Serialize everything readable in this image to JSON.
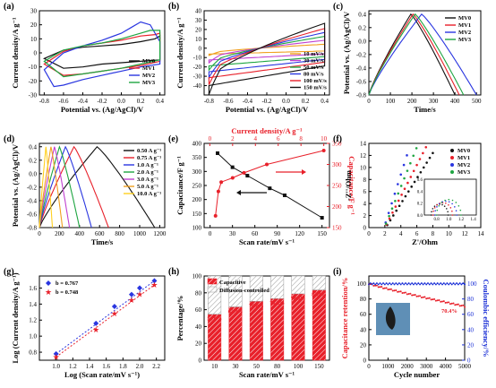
{
  "colors": {
    "MV0": "#111111",
    "MV1": "#e8202a",
    "MV2": "#2a36e0",
    "MV3": "#1ea541",
    "red": "#e8202a",
    "blue": "#1a2fd6"
  },
  "chart_data": [
    {
      "id": "a",
      "panel_label": "(a)",
      "type": "line",
      "xlabel": "Potential vs. (Ag/AgCl)/V",
      "ylabel": "Current density/A g⁻¹",
      "xlim": [
        -0.85,
        0.45
      ],
      "ylim": [
        -30,
        30
      ],
      "xticks": [
        "-0.8",
        "-0.6",
        "-0.4",
        "-0.2",
        "0.0",
        "0.2",
        "0.4"
      ],
      "yticks": [
        "-30",
        "-20",
        "-10",
        "0",
        "10",
        "20",
        "30"
      ],
      "series": [
        {
          "name": "MV0",
          "color": "#111111",
          "x": [
            -0.8,
            -0.6,
            -0.4,
            -0.2,
            0.0,
            0.2,
            0.35,
            0.4,
            0.4,
            0.2,
            0.0,
            -0.2,
            -0.4,
            -0.6,
            -0.8
          ],
          "y": [
            -4,
            2,
            4,
            5,
            6,
            8,
            10,
            12,
            -5,
            -6,
            -7,
            -8,
            -10,
            -11,
            -4
          ]
        },
        {
          "name": "MV1",
          "color": "#e8202a",
          "x": [
            -0.8,
            -0.6,
            -0.4,
            -0.2,
            0.0,
            0.2,
            0.35,
            0.4,
            0.4,
            0.2,
            0.0,
            -0.2,
            -0.4,
            -0.6,
            -0.8
          ],
          "y": [
            -8,
            1,
            5,
            7,
            9,
            12,
            13,
            14,
            -6,
            -9,
            -11,
            -13,
            -15,
            -16,
            -8
          ]
        },
        {
          "name": "MV2",
          "color": "#2a36e0",
          "x": [
            -0.8,
            -0.6,
            -0.4,
            -0.2,
            0.0,
            0.1,
            0.2,
            0.3,
            0.4,
            0.4,
            0.2,
            0.0,
            -0.2,
            -0.4,
            -0.6,
            -0.7,
            -0.8
          ],
          "y": [
            -12,
            0,
            5,
            9,
            14,
            18,
            22,
            20,
            8,
            -8,
            -10,
            -13,
            -16,
            -19,
            -23,
            -24,
            -12
          ]
        },
        {
          "name": "MV3",
          "color": "#1ea541",
          "x": [
            -0.8,
            -0.6,
            -0.4,
            -0.2,
            0.0,
            0.2,
            0.3,
            0.4,
            0.4,
            0.2,
            0.0,
            -0.2,
            -0.4,
            -0.6,
            -0.8
          ],
          "y": [
            -6,
            2,
            5,
            7,
            10,
            14,
            16,
            16,
            -5,
            -8,
            -11,
            -13,
            -15,
            -17,
            -6
          ]
        }
      ],
      "legend": [
        "MV0",
        "MV1",
        "MV2",
        "MV3"
      ]
    },
    {
      "id": "b",
      "panel_label": "(b)",
      "type": "line",
      "xlabel": "Potential vs. (Ag/AgCl)/V",
      "ylabel": "Current density/A g⁻¹",
      "xlim": [
        -0.85,
        0.45
      ],
      "ylim": [
        -50,
        40
      ],
      "xticks": [
        "-0.8",
        "-0.6",
        "-0.4",
        "-0.2",
        "0.0",
        "0.2",
        "0.4"
      ],
      "yticks": [
        "-40",
        "-30",
        "-20",
        "-10",
        "0",
        "10",
        "20",
        "30",
        "40"
      ],
      "series": [
        {
          "name": "10 mV/s",
          "color": "#f0a020",
          "amp": 6
        },
        {
          "name": "30 mV/s",
          "color": "#c040d0",
          "amp": 12
        },
        {
          "name": "50 mV/s",
          "color": "#1ea541",
          "amp": 18
        },
        {
          "name": "80 mV/s",
          "color": "#2a36e0",
          "amp": 24
        },
        {
          "name": "100 mV/s",
          "color": "#e8202a",
          "amp": 30
        },
        {
          "name": "150 mV/s",
          "color": "#111111",
          "amp": 38
        }
      ],
      "legend": [
        "10 mV/s",
        "30 mV/s",
        "50 mV/s",
        "80 mV/s",
        "100 mV/s",
        "150 mV/s"
      ]
    },
    {
      "id": "c",
      "panel_label": "(c)",
      "type": "line",
      "xlabel": "Time/s",
      "ylabel": "Potential vs. (Ag/AgCl)/V",
      "xlim": [
        0,
        520
      ],
      "ylim": [
        -0.8,
        0.45
      ],
      "xticks": [
        "0",
        "100",
        "200",
        "300",
        "400",
        "500"
      ],
      "yticks": [
        "-0.8",
        "-0.6",
        "-0.4",
        "-0.2",
        "0.0",
        "0.2",
        "0.4"
      ],
      "series": [
        {
          "name": "MV0",
          "color": "#111111",
          "peak": 195,
          "end": 400
        },
        {
          "name": "MV1",
          "color": "#e8202a",
          "peak": 205,
          "end": 420
        },
        {
          "name": "MV2",
          "color": "#2a36e0",
          "peak": 245,
          "end": 500
        },
        {
          "name": "MV3",
          "color": "#1ea541",
          "peak": 215,
          "end": 440
        }
      ],
      "legend": [
        "MV0",
        "MV1",
        "MV2",
        "MV3"
      ]
    },
    {
      "id": "d",
      "panel_label": "(d)",
      "type": "line",
      "xlabel": "Time/s",
      "ylabel": "Potential vs. (Ag/AgCl)/V",
      "xlim": [
        0,
        1250
      ],
      "ylim": [
        -0.8,
        0.45
      ],
      "xticks": [
        "0",
        "200",
        "400",
        "600",
        "800",
        "1000",
        "1200"
      ],
      "yticks": [
        "-0.8",
        "-0.6",
        "-0.4",
        "-0.2",
        "0.0",
        "0.2",
        "0.4"
      ],
      "series": [
        {
          "name": "0.50 A g⁻¹",
          "color": "#111111",
          "end": 1150
        },
        {
          "name": "0.75 A g⁻¹",
          "color": "#e8202a",
          "end": 690
        },
        {
          "name": "1.0 A g⁻¹",
          "color": "#2a36e0",
          "end": 520
        },
        {
          "name": "2.0 A g⁻¹",
          "color": "#1ea541",
          "end": 400
        },
        {
          "name": "3.0 A g⁻¹",
          "color": "#c040d0",
          "end": 300
        },
        {
          "name": "5.0 A g⁻¹",
          "color": "#f0a020",
          "end": 230
        },
        {
          "name": "10.0 A g⁻¹",
          "color": "#ffd020",
          "end": 130
        }
      ],
      "legend": [
        "0.50 A g⁻¹",
        "0.75 A g⁻¹",
        "1.0 A g⁻¹",
        "2.0 A g⁻¹",
        "3.0 A g⁻¹",
        "5.0 A g⁻¹",
        "10.0 A g⁻¹"
      ]
    },
    {
      "id": "e",
      "panel_label": "(e)",
      "type": "line",
      "xlabel": "Scan rate/mV s⁻¹",
      "ylabel": "Capacitance/F g⁻¹",
      "x2label": "Current density/A g⁻¹",
      "y2label": "Capacitance/F g⁻¹",
      "xlim": [
        -8,
        160
      ],
      "ylim": [
        100,
        400
      ],
      "xticks": [
        "0",
        "30",
        "60",
        "90",
        "120",
        "150"
      ],
      "yticks": [
        "100",
        "150",
        "200",
        "250",
        "300",
        "350",
        "400"
      ],
      "x2lim": [
        -0.5,
        10.5
      ],
      "x2ticks": [
        "0",
        "2",
        "4",
        "6",
        "8",
        "10"
      ],
      "y2lim": [
        150,
        350
      ],
      "y2ticks": [
        "150",
        "200",
        "250",
        "300",
        "350"
      ],
      "series": [
        {
          "name": "scan rate",
          "color": "#111111",
          "x": [
            10,
            30,
            50,
            80,
            100,
            150
          ],
          "y": [
            365,
            315,
            285,
            240,
            215,
            135
          ]
        },
        {
          "name": "current density",
          "color": "#e8202a",
          "x2": [
            0.5,
            0.75,
            1,
            2,
            3,
            5,
            10
          ],
          "y2": [
            178,
            236,
            258,
            268,
            280,
            300,
            333
          ]
        }
      ]
    },
    {
      "id": "f",
      "panel_label": "(f)",
      "type": "scatter",
      "xlabel": "Z'/Ohm",
      "ylabel": "-Z''/Ohm",
      "xlim": [
        0,
        14
      ],
      "ylim": [
        0,
        14
      ],
      "xticks": [
        "0",
        "2",
        "4",
        "6",
        "8",
        "10",
        "12",
        "14"
      ],
      "yticks": [
        "0",
        "2",
        "4",
        "6",
        "8",
        "10",
        "12",
        "14"
      ],
      "inset": {
        "xlim": [
          0.6,
          1.45
        ],
        "ylim": [
          0,
          0.6
        ],
        "xticks": [
          "0.8",
          "1.0",
          "1.2",
          "1.4"
        ],
        "yticks": [
          "0.0",
          "0.2",
          "0.4",
          "0.6"
        ]
      },
      "series": [
        {
          "name": "MV0",
          "color": "#111111",
          "x0": 1.1,
          "slope": 2.1
        },
        {
          "name": "MV1",
          "color": "#e8202a",
          "x0": 1.0,
          "slope": 2.6
        },
        {
          "name": "MV2",
          "color": "#2a36e0",
          "x0": 0.9,
          "slope": 4.2
        },
        {
          "name": "MV3",
          "color": "#1ea541",
          "x0": 0.95,
          "slope": 3.3
        }
      ],
      "legend": [
        "MV0",
        "MV1",
        "MV2",
        "MV3"
      ]
    },
    {
      "id": "g",
      "panel_label": "(g)",
      "type": "scatter",
      "xlabel": "Log (Scan rate/mV s⁻¹)",
      "ylabel": "Log (Current density/A g⁻¹)",
      "xlim": [
        0.8,
        2.3
      ],
      "ylim": [
        0.7,
        1.75
      ],
      "xticks": [
        "1.0",
        "1.2",
        "1.4",
        "1.6",
        "1.8",
        "2.0",
        "2.2"
      ],
      "yticks": [
        "0.8",
        "1.0",
        "1.2",
        "1.4",
        "1.6"
      ],
      "series": [
        {
          "name": "b = 0.767",
          "color": "#2a36e0",
          "marker": "diamond",
          "x": [
            1.0,
            1.477,
            1.699,
            1.903,
            2.0,
            2.176
          ],
          "y": [
            0.78,
            1.16,
            1.37,
            1.52,
            1.6,
            1.69
          ]
        },
        {
          "name": "b = 0.748",
          "color": "#e8202a",
          "marker": "star",
          "x": [
            1.0,
            1.477,
            1.699,
            1.903,
            2.0,
            2.176
          ],
          "y": [
            0.74,
            1.08,
            1.28,
            1.45,
            1.52,
            1.64
          ]
        }
      ],
      "legend": [
        "b = 0.767",
        "b = 0.748"
      ]
    },
    {
      "id": "h",
      "panel_label": "(h)",
      "type": "bar",
      "xlabel": "Scan rate/mV s⁻¹",
      "ylabel": "Percentage/%",
      "ylim": [
        0,
        100
      ],
      "categories": [
        "10",
        "30",
        "50",
        "80",
        "100",
        "150"
      ],
      "yticks": [
        "0",
        "20",
        "40",
        "60",
        "80",
        "100"
      ],
      "series": [
        {
          "name": "Capacitive",
          "color": "#e8202a",
          "values": [
            54.6,
            63.3,
            70.0,
            73.2,
            78.8,
            83.4
          ]
        },
        {
          "name": "Diffusion-controlled",
          "color": "#9a9a9a",
          "values": [
            45.4,
            36.7,
            30.0,
            26.8,
            21.2,
            16.6
          ]
        }
      ],
      "data_labels": [
        "54.6%",
        "63.3%",
        "70.0%",
        "73.2%",
        "78.8%",
        "83.4%"
      ],
      "legend": [
        "Capacitive",
        "Diffusion-controlled"
      ]
    },
    {
      "id": "i",
      "panel_label": "(i)",
      "type": "line",
      "xlabel": "Cycle number",
      "ylabel": "Capacitance retention/%",
      "y2label": "Coulombic efficiency/%",
      "xlim": [
        0,
        5000
      ],
      "ylim": [
        0,
        110
      ],
      "y2lim": [
        0,
        110
      ],
      "xticks": [
        "0",
        "1000",
        "2000",
        "3000",
        "4000",
        "5000"
      ],
      "yticks": [
        "0",
        "20",
        "40",
        "60",
        "80",
        "100"
      ],
      "y2ticks": [
        "0",
        "20",
        "40",
        "60",
        "80",
        "100"
      ],
      "series": [
        {
          "name": "Capacitance retention",
          "color": "#e8202a",
          "x": [
            0,
            200,
            600,
            1000,
            1500,
            2000,
            2500,
            3000,
            3500,
            4000,
            4500,
            5000
          ],
          "y": [
            100,
            98,
            95,
            93,
            90,
            87,
            84,
            80,
            76,
            73,
            71,
            70.4
          ]
        },
        {
          "name": "Coulombic efficiency",
          "color": "#1a2fd6",
          "x": [
            0,
            5000
          ],
          "y": [
            100,
            100
          ]
        }
      ],
      "annotation": "70.4%"
    }
  ]
}
